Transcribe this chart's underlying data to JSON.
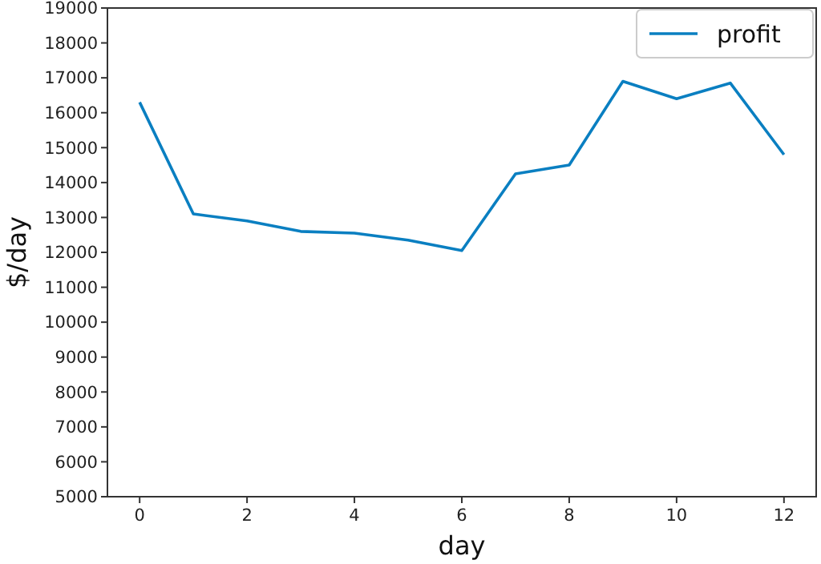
{
  "chart_data": {
    "type": "line",
    "xlabel": "day",
    "ylabel": "$/day",
    "x": [
      0,
      1,
      2,
      3,
      4,
      5,
      6,
      7,
      8,
      9,
      10,
      11,
      12
    ],
    "series": [
      {
        "name": "profit",
        "color": "#0a7fc1",
        "values": [
          16300,
          13100,
          12900,
          12600,
          12550,
          12350,
          12050,
          14250,
          14500,
          16900,
          16400,
          16850,
          14800
        ]
      }
    ],
    "xlim": [
      -0.6,
      12.6
    ],
    "xticks": [
      0,
      2,
      4,
      6,
      8,
      10,
      12
    ],
    "ylim": [
      5000,
      19000
    ],
    "yticks": [
      5000,
      6000,
      7000,
      8000,
      9000,
      10000,
      11000,
      12000,
      13000,
      14000,
      15000,
      16000,
      17000,
      18000,
      19000
    ],
    "grid": false,
    "legend": "top right",
    "marker": "none",
    "line_style": "solid"
  }
}
